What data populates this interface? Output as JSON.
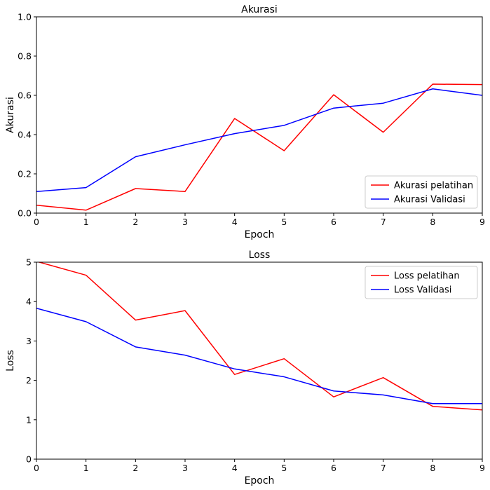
{
  "chart_data": [
    {
      "type": "line",
      "title": "Akurasi",
      "xlabel": "Epoch",
      "ylabel": "Akurasi",
      "xlim": [
        0,
        9
      ],
      "ylim": [
        0,
        1.0
      ],
      "x": [
        0,
        1,
        2,
        3,
        4,
        5,
        6,
        7,
        8,
        9
      ],
      "xticks": [
        "0",
        "1",
        "2",
        "3",
        "4",
        "5",
        "6",
        "7",
        "8",
        "9"
      ],
      "yticks": [
        0.0,
        0.2,
        0.4,
        0.6,
        0.8,
        1.0
      ],
      "ytick_labels": [
        "0.0",
        "0.2",
        "0.4",
        "0.6",
        "0.8",
        "1.0"
      ],
      "grid": false,
      "legend_position": "lower-right",
      "series": [
        {
          "name": "Akurasi pelatihan",
          "color": "#ff0000",
          "values": [
            0.04,
            0.015,
            0.125,
            0.11,
            0.482,
            0.318,
            0.603,
            0.412,
            0.657,
            0.655
          ]
        },
        {
          "name": "Akurasi Validasi",
          "color": "#0000ff",
          "values": [
            0.11,
            0.13,
            0.287,
            0.348,
            0.405,
            0.447,
            0.535,
            0.56,
            0.633,
            0.6
          ]
        }
      ]
    },
    {
      "type": "line",
      "title": "Loss",
      "xlabel": "Epoch",
      "ylabel": "Loss",
      "xlim": [
        0,
        9
      ],
      "ylim": [
        0,
        5
      ],
      "x": [
        0,
        1,
        2,
        3,
        4,
        5,
        6,
        7,
        8,
        9
      ],
      "xticks": [
        "0",
        "1",
        "2",
        "3",
        "4",
        "5",
        "6",
        "7",
        "8",
        "9"
      ],
      "yticks": [
        0,
        1,
        2,
        3,
        4,
        5
      ],
      "ytick_labels": [
        "0",
        "1",
        "2",
        "3",
        "4",
        "5"
      ],
      "grid": false,
      "legend_position": "upper-right",
      "series": [
        {
          "name": "Loss pelatihan",
          "color": "#ff0000",
          "values": [
            5.02,
            4.67,
            3.53,
            3.77,
            2.15,
            2.55,
            1.58,
            2.07,
            1.34,
            1.25
          ]
        },
        {
          "name": "Loss Validasi",
          "color": "#0000ff",
          "values": [
            3.83,
            3.49,
            2.85,
            2.64,
            2.29,
            2.09,
            1.73,
            1.63,
            1.41,
            1.41
          ]
        }
      ]
    }
  ]
}
